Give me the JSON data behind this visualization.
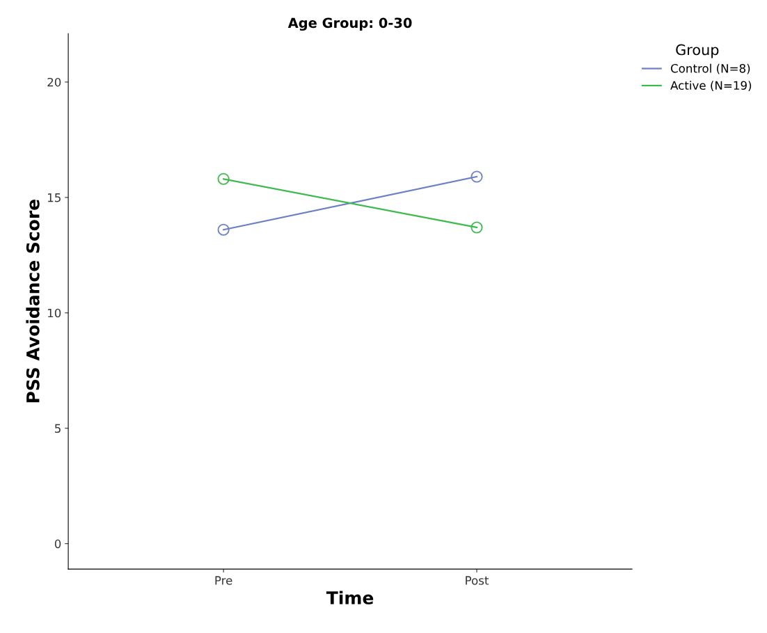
{
  "chart_data": {
    "type": "line",
    "title": "Age Group: 0-30",
    "xlabel": "Time",
    "ylabel": "PSS Avoidance Score",
    "legend_title": "Group",
    "categories": [
      "Pre",
      "Post"
    ],
    "series": [
      {
        "name": "Control (N=8)",
        "color": "#6b7fc6",
        "values": [
          13.6,
          15.9
        ]
      },
      {
        "name": "Active (N=19)",
        "color": "#3dba4c",
        "values": [
          15.8,
          13.7
        ]
      }
    ],
    "ylim": [
      -1.1,
      22.1
    ],
    "yticks": [
      0,
      5,
      10,
      15,
      20
    ],
    "grid": false,
    "legend": "top right",
    "marker": "circle",
    "line_style": "solid"
  }
}
